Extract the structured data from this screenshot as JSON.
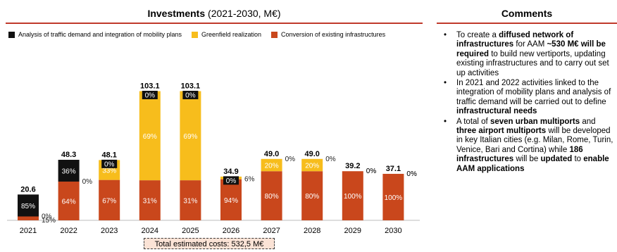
{
  "colors": {
    "analysis": "#111111",
    "greenfield": "#f7bd1c",
    "conversion": "#c9471c",
    "accent": "#c0392b",
    "total_box_bg": "#fbe3d6"
  },
  "header": {
    "title_bold": "Investments",
    "title_rest": " (2021-2030, M€)"
  },
  "comments": {
    "title": "Comments",
    "items": [
      [
        {
          "t": "To create a ",
          "b": false
        },
        {
          "t": "diffused network of infrastructures",
          "b": true
        },
        {
          "t": " for AAM ",
          "b": false
        },
        {
          "t": "~530 M€ will be required",
          "b": true
        },
        {
          "t": " to build new vertiports, updating existing infrastructures and to carry out set up activities",
          "b": false
        }
      ],
      [
        {
          "t": "In 2021 and 2022 activities linked to the integration of mobility plans and analysis of traffic demand will be carried out to define ",
          "b": false
        },
        {
          "t": "infrastructural needs",
          "b": true
        }
      ],
      [
        {
          "t": "A total of ",
          "b": false
        },
        {
          "t": "seven urban multiports",
          "b": true
        },
        {
          "t": " and ",
          "b": false
        },
        {
          "t": "three airport multiports",
          "b": true
        },
        {
          "t": " will be developed in key Italian cities (e.g. Milan, Rome, Turin, Venice, Bari and Cortina) while ",
          "b": false
        },
        {
          "t": "186 infrastructures",
          "b": true
        },
        {
          "t": " will be ",
          "b": false
        },
        {
          "t": "updated",
          "b": true
        },
        {
          "t": " to ",
          "b": false
        },
        {
          "t": "enable AAM applications",
          "b": true
        }
      ]
    ]
  },
  "total_label": "Total estimated costs: 532,5 M€",
  "chart_data": {
    "type": "bar",
    "stacked": true,
    "title": "Investments (2021-2030, M€)",
    "categories": [
      "2021",
      "2022",
      "2023",
      "2024",
      "2025",
      "2026",
      "2027",
      "2028",
      "2029",
      "2030"
    ],
    "totals": [
      20.6,
      48.3,
      48.1,
      103.1,
      103.1,
      34.9,
      49.0,
      49.0,
      39.2,
      37.1
    ],
    "total_labels": [
      "20.6",
      "48.3",
      "48.1",
      "103.1",
      "103.1",
      "34.9",
      "49.0",
      "49.0",
      "39.2",
      "37.1"
    ],
    "series": [
      {
        "name": "Conversion of existing infrastructures",
        "color": "#c9471c",
        "percent_labels": [
          "15%",
          "64%",
          "67%",
          "31%",
          "31%",
          "94%",
          "80%",
          "80%",
          "100%",
          "100%"
        ]
      },
      {
        "name": "Greenfield realization",
        "color": "#f7bd1c",
        "percent_labels": [
          "0%",
          "0%",
          "33%",
          "69%",
          "69%",
          "6%",
          "20%",
          "20%",
          "0%",
          "0%"
        ]
      },
      {
        "name": "Analysis of traffic demand and integration of mobility plans",
        "color": "#111111",
        "percent_labels": [
          "85%",
          "36%",
          "0%",
          "0%",
          "0%",
          "0%",
          "0%",
          "0%",
          "0%",
          "0%"
        ]
      }
    ],
    "legend_order": [
      2,
      1,
      0
    ],
    "legend_position": "top",
    "ylim": [
      0,
      110
    ],
    "grid": false
  }
}
